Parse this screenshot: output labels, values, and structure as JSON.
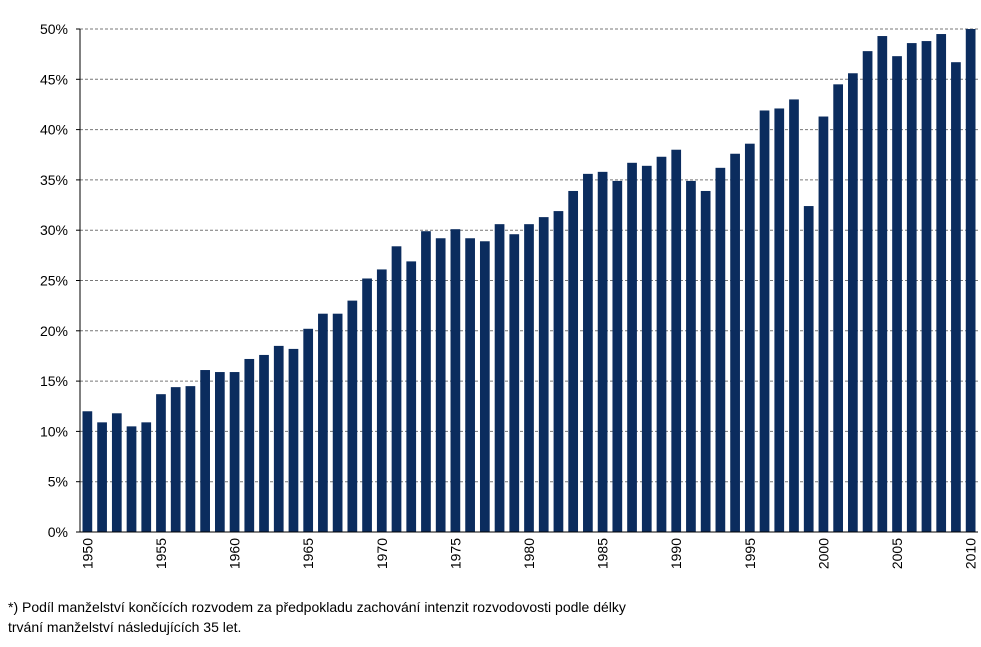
{
  "chart_data": {
    "type": "bar",
    "categories": [
      "1950",
      null,
      null,
      null,
      null,
      "1955",
      null,
      null,
      null,
      null,
      "1960",
      null,
      null,
      null,
      null,
      "1965",
      null,
      null,
      null,
      null,
      "1970",
      null,
      null,
      null,
      null,
      "1975",
      null,
      null,
      null,
      null,
      "1980",
      null,
      null,
      null,
      null,
      "1985",
      null,
      null,
      null,
      null,
      "1990",
      null,
      null,
      null,
      null,
      "1995",
      null,
      null,
      null,
      null,
      "2000",
      null,
      null,
      null,
      null,
      "2005",
      null,
      null,
      null,
      null,
      "2010"
    ],
    "values": [
      12.0,
      10.9,
      11.8,
      10.5,
      10.9,
      13.7,
      14.4,
      14.5,
      16.1,
      15.9,
      15.9,
      17.2,
      17.6,
      18.5,
      18.2,
      20.2,
      21.7,
      21.7,
      23.0,
      25.2,
      26.1,
      28.4,
      26.9,
      29.9,
      29.2,
      30.1,
      29.2,
      28.9,
      30.6,
      29.6,
      30.6,
      31.3,
      31.9,
      33.9,
      35.6,
      35.8,
      34.9,
      36.7,
      36.4,
      37.3,
      38.0,
      34.9,
      33.9,
      36.2,
      37.6,
      38.6,
      41.9,
      42.1,
      43.0,
      32.4,
      41.3,
      44.5,
      45.6,
      47.8,
      49.3,
      47.3,
      48.6,
      48.8,
      49.5,
      46.7,
      50.0
    ],
    "color": "#0b2c5e",
    "ylim": [
      0,
      50
    ],
    "yticks": [
      {
        "value": 0,
        "label": "0%"
      },
      {
        "value": 5,
        "label": "5%"
      },
      {
        "value": 10,
        "label": "10%"
      },
      {
        "value": 15,
        "label": "15%"
      },
      {
        "value": 20,
        "label": "20%"
      },
      {
        "value": 25,
        "label": "25%"
      },
      {
        "value": 30,
        "label": "30%"
      },
      {
        "value": 35,
        "label": "35%"
      },
      {
        "value": 40,
        "label": "40%"
      },
      {
        "value": 45,
        "label": "45%"
      },
      {
        "value": 50,
        "label": "50%"
      }
    ],
    "grid": true,
    "footnote": [
      "*) Podíl manželství končících rozvodem za předpokladu zachování intenzit rozvodovosti podle délky",
      "trvání manželství následujících 35 let."
    ]
  }
}
